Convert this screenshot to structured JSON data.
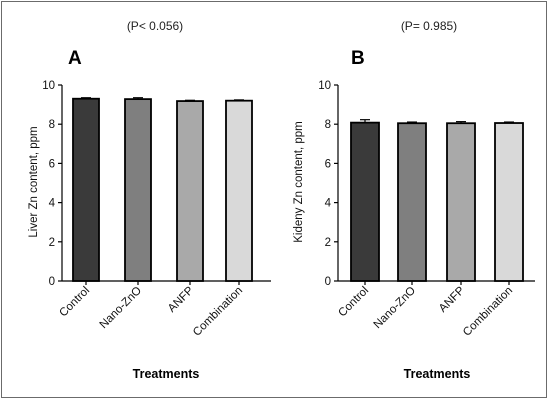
{
  "chart_data": [
    {
      "type": "bar",
      "panel": "A",
      "title": "(P< 0.056)",
      "xlabel": "Treatments",
      "ylabel": "Liver Zn content, ppm",
      "ylim": [
        0,
        10
      ],
      "yticks": [
        "0",
        "2",
        "4",
        "6",
        "8",
        "10"
      ],
      "categories": [
        "Control",
        "Nano-ZnO",
        "ANFP",
        "Combination"
      ],
      "values": [
        9.3,
        9.28,
        9.18,
        9.2
      ],
      "errors": [
        0.05,
        0.07,
        0.04,
        0.04
      ],
      "colors": [
        "#3a3a3a",
        "#7f7f7f",
        "#a9a9a9",
        "#d9d9d9"
      ]
    },
    {
      "type": "bar",
      "panel": "B",
      "title": "(P= 0.985)",
      "xlabel": "Treatments",
      "ylabel": "Kideny Zn content, ppm",
      "ylim": [
        0,
        10
      ],
      "yticks": [
        "0",
        "2",
        "4",
        "6",
        "8",
        "10"
      ],
      "categories": [
        "Control",
        "Nano-ZnO",
        "ANFP",
        "Combination"
      ],
      "values": [
        8.08,
        8.05,
        8.05,
        8.06
      ],
      "errors": [
        0.15,
        0.06,
        0.08,
        0.05
      ],
      "colors": [
        "#3a3a3a",
        "#7f7f7f",
        "#a9a9a9",
        "#d9d9d9"
      ]
    }
  ]
}
